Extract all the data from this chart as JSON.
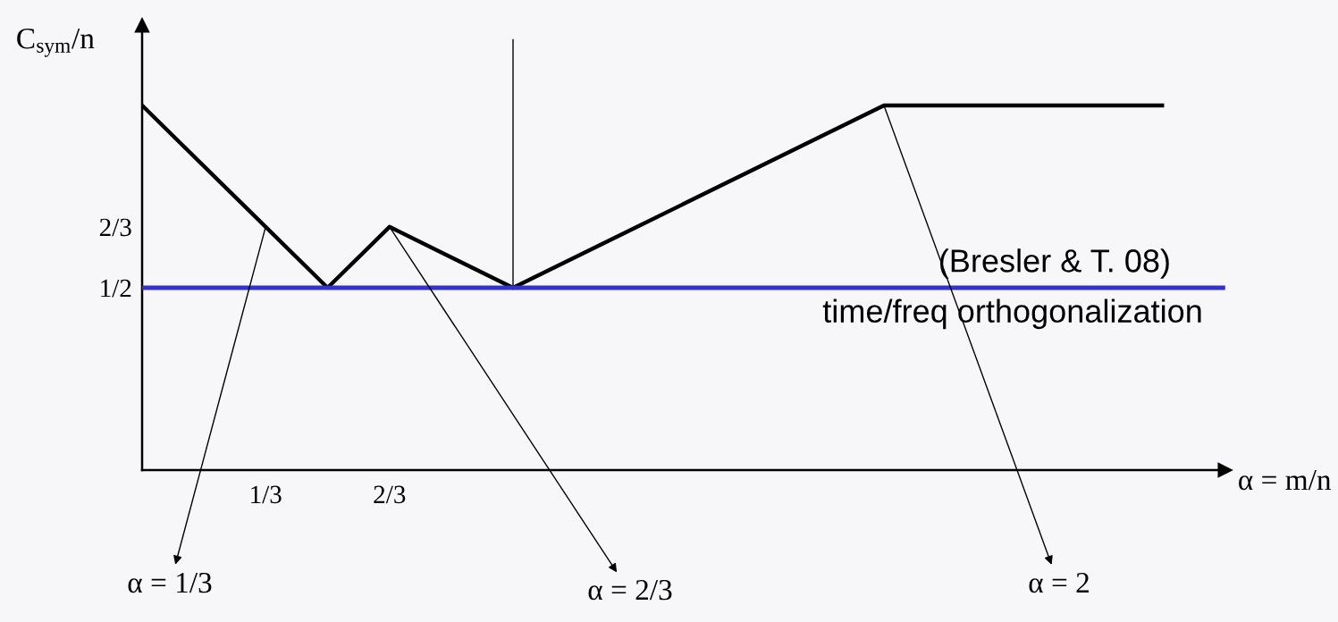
{
  "chart_data": {
    "type": "line",
    "ylabel": "C$_{sym}$/n",
    "xlabel": "α = m/n",
    "xlim": [
      0,
      2.92
    ],
    "ylim": [
      0,
      1.22
    ],
    "xticks": [
      {
        "value": 0.333,
        "label": "1/3"
      },
      {
        "value": 0.667,
        "label": "2/3"
      }
    ],
    "yticks": [
      {
        "value": 0.5,
        "label": "1/2"
      },
      {
        "value": 0.667,
        "label": "2/3"
      }
    ],
    "series": [
      {
        "color": "#000000",
        "x": [
          0,
          0.5,
          0.667,
          1,
          2,
          2.75
        ],
        "values": [
          1,
          0.5,
          0.667,
          0.5,
          1,
          1
        ]
      },
      {
        "color": "#000000",
        "x": [
          1,
          1
        ],
        "values": [
          0.5,
          1.18
        ]
      }
    ],
    "ref_lines": [
      {
        "axis": "y",
        "value": 0.5,
        "label": "time/freq orthogonalization",
        "color": "#3333cc"
      }
    ],
    "annotations": [
      {
        "text": "α = 1/3",
        "x": 0.333,
        "y": 0.667
      },
      {
        "text": "α = 2/3",
        "x": 0.667,
        "y": 0.667
      },
      {
        "text": "α = 2",
        "x": 2,
        "y": 1
      },
      "(Bresler & T. 08)"
    ]
  }
}
